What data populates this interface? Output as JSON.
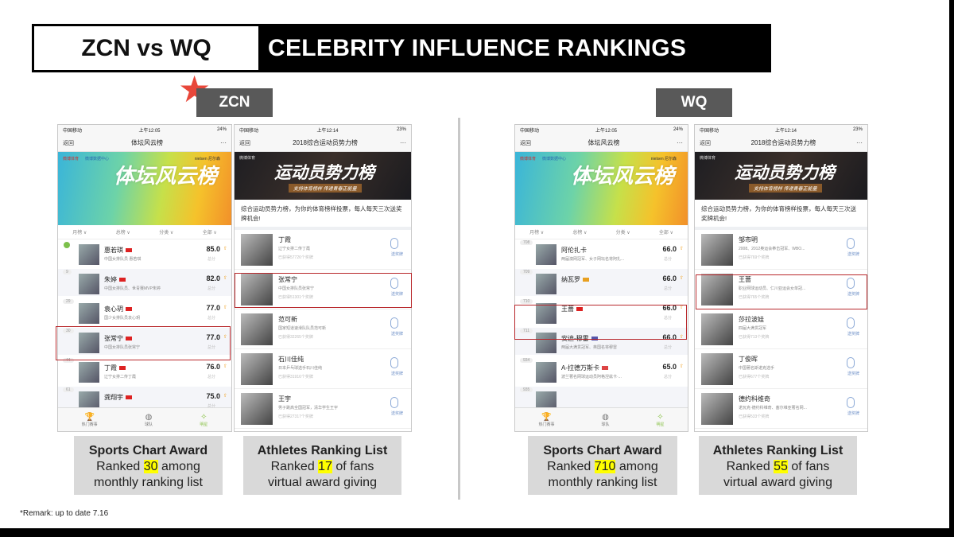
{
  "title": {
    "left": "ZCN vs WQ",
    "right": "CELEBRITY INFLUENCE RANKINGS"
  },
  "tags": {
    "zcn": "ZCN",
    "wq": "WQ"
  },
  "colors": {
    "highlight_box": "#b8272b",
    "caption_bg": "#d9d9d9",
    "highlight": "#ffff00",
    "star": "#e8473a"
  },
  "phoneA_common": {
    "back": "返回",
    "more": "···",
    "logo1": "微博体育",
    "logo2": "微博数据中心",
    "logo3": "nielsen 尼尔森",
    "banner": "体坛风云榜",
    "filters": [
      "月榜 ∨",
      "总榜 ∨",
      "分类 ∨",
      "全部 ∨"
    ],
    "score_label": "总分",
    "tabs": [
      "热门赛事",
      "球队",
      "明星"
    ]
  },
  "phoneB_common": {
    "back": "返回",
    "more": "···",
    "logo": "微博体育",
    "banner": "运动员势力榜",
    "banner_sub": "支持体育榜样 传递青春正能量",
    "desc": "综合运动员势力榜，为你的体育榜样投票，每人每天三次送奖牌机会!",
    "medal_label": "送奖牌"
  },
  "phones": [
    {
      "type": "A",
      "carrier": "中国移动",
      "time": "上午12:05",
      "battery": "24%",
      "title": "体坛风云榜",
      "rows": [
        {
          "rank": "",
          "name": "惠若琪",
          "flag": "#d22",
          "desc": "中国女排队员 惠若琪",
          "score": "85.0"
        },
        {
          "rank": "9",
          "name": "朱婷",
          "flag": "#d22",
          "desc": "中国女排队员、世青赛MVP朱婷",
          "score": "82.0"
        },
        {
          "rank": "29",
          "name": "袁心玥",
          "flag": "#d22",
          "desc": "国少女排队员袁心玥",
          "score": "77.0"
        },
        {
          "rank": "30",
          "name": "张常宁",
          "flag": "#d22",
          "desc": "中国女排队员张常宁",
          "score": "77.0"
        },
        {
          "rank": "44",
          "name": "丁霞",
          "flag": "#d22",
          "desc": "辽宁女排二传丁霞",
          "score": "76.0"
        },
        {
          "rank": "61",
          "name": "龚翔宇",
          "flag": "#d22",
          "desc": "",
          "score": "75.0"
        }
      ]
    },
    {
      "type": "B",
      "carrier": "中国移动",
      "time": "上午12:14",
      "battery": "23%",
      "title": "2018综合运动员势力榜",
      "rows": [
        {
          "name": "丁霞",
          "desc": "辽宁女排二传丁霞",
          "count": "已获得57726个奖牌"
        },
        {
          "name": "张常宁",
          "desc": "中国女排队员张常宁",
          "count": "已获得51301个奖牌"
        },
        {
          "name": "范可新",
          "desc": "国家短道速滑队队员范可新",
          "count": "已获得32265个奖牌"
        },
        {
          "name": "石川佳纯",
          "desc": "日本乒乓球选手石川佳纯",
          "count": "已获得31916个奖牌"
        },
        {
          "name": "王宇",
          "desc": "男子跳高全国冠军，清华学生王宇",
          "count": "已获得27317个奖牌"
        }
      ]
    },
    {
      "type": "A",
      "carrier": "中国移动",
      "time": "上午12:05",
      "battery": "24%",
      "title": "体坛风云榜",
      "rows": [
        {
          "rank": "708",
          "name": "阿伦扎卡",
          "flag": "",
          "desc": "两届澳网冠军、女子网坛名将阿扎...",
          "score": "66.0"
        },
        {
          "rank": "709",
          "name": "纳瓦罗",
          "flag": "#e8a020",
          "desc": "",
          "score": "66.0"
        },
        {
          "rank": "710",
          "name": "王蔷",
          "flag": "#d22",
          "desc": "",
          "score": "66.0"
        },
        {
          "rank": "711",
          "name": "安迪-穆雷",
          "flag": "#55a",
          "desc": "两届大满贯冠军、英国名将穆雷",
          "score": "66.0"
        },
        {
          "rank": "934",
          "name": "A-拉德万斯卡",
          "flag": "#d44",
          "desc": "波兰著名网球运动员阿格涅兹卡·...",
          "score": "65.0"
        },
        {
          "rank": "935",
          "name": "",
          "flag": "",
          "desc": "",
          "score": ""
        }
      ]
    },
    {
      "type": "B",
      "carrier": "中国移动",
      "time": "上午12:14",
      "battery": "23%",
      "title": "2018综合运动员势力榜",
      "rows": [
        {
          "name": "邹市明",
          "desc": "2008、2012奥运会拳击冠军、WBO...",
          "count": "已获得769个奖牌"
        },
        {
          "name": "王蔷",
          "desc": "职业网球运动员、仁川亚运会女单冠...",
          "count": "已获得765个奖牌"
        },
        {
          "name": "莎拉波娃",
          "desc": "四届大满贯冠军",
          "count": "已获得713个奖牌"
        },
        {
          "name": "丁俊晖",
          "desc": "中国著名斯诺克选手",
          "count": "已获得677个奖牌"
        },
        {
          "name": "德约科维奇",
          "desc": "诺瓦克-德约科维奇、塞尔维亚著名网...",
          "count": "已获得533个奖牌"
        }
      ]
    }
  ],
  "captions": [
    {
      "title": "Sports Chart Award",
      "pre": "Ranked ",
      "num": "30",
      "post": " among",
      "line3": "monthly ranking list"
    },
    {
      "title": "Athletes Ranking List",
      "pre": "Ranked ",
      "num": "17",
      "post": " of fans",
      "line3": "virtual award giving"
    },
    {
      "title": "Sports Chart Award",
      "pre": "Ranked ",
      "num": "710",
      "post": " among",
      "line3": "monthly ranking list"
    },
    {
      "title": "Athletes Ranking List",
      "pre": "Ranked ",
      "num": "55",
      "post": " of fans",
      "line3": "virtual award giving"
    }
  ],
  "remark": "*Remark: up to date 7.16"
}
